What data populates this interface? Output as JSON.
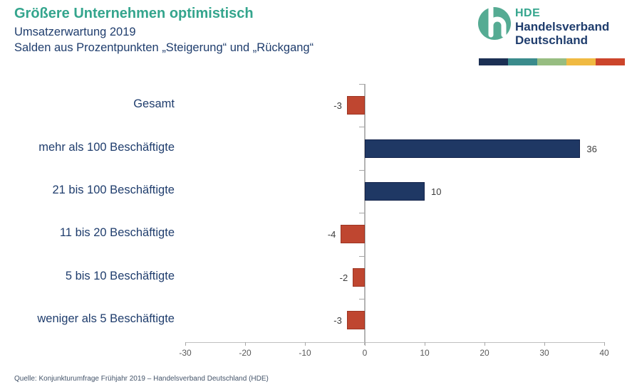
{
  "header": {
    "title": "Größere Unternehmen optimistisch",
    "subtitle1": "Umsatzerwartung 2019",
    "subtitle2": "Salden aus Prozentpunkten „Steigerung“ und „Rückgang“"
  },
  "logo": {
    "acronym": "HDE",
    "name_line1": "Handelsverband",
    "name_line2": "Deutschland",
    "mark_color": "#55ab93",
    "stripe_colors": [
      "#1c3054",
      "#3a8b8c",
      "#97bd81",
      "#f0ba42",
      "#cc452b"
    ]
  },
  "chart_data": {
    "type": "bar",
    "orientation": "horizontal",
    "title": "Größere Unternehmen optimistisch",
    "subtitle": "Umsatzerwartung 2019 — Salden aus Prozentpunkten „Steigerung“ und „Rückgang“",
    "categories": [
      "Gesamt",
      "mehr als 100 Beschäftigte",
      "21 bis 100 Beschäftigte",
      "11 bis 20 Beschäftigte",
      "5 bis 10 Beschäftigte",
      "weniger als 5 Beschäftigte"
    ],
    "values": [
      -3,
      36,
      10,
      -4,
      -2,
      -3
    ],
    "xlim": [
      -30,
      40
    ],
    "x_ticks": [
      -30,
      -20,
      -10,
      0,
      10,
      20,
      30,
      40
    ],
    "grid": "zero-line-only",
    "legend": "none",
    "positive_color": "#1f3864",
    "positive_border": "#13224a",
    "negative_color": "#bf4630",
    "negative_border": "#9c3523"
  },
  "footer": {
    "source": "Quelle: Konjunkturumfrage Frühjahr 2019 – Handelsverband Deutschland (HDE)"
  }
}
